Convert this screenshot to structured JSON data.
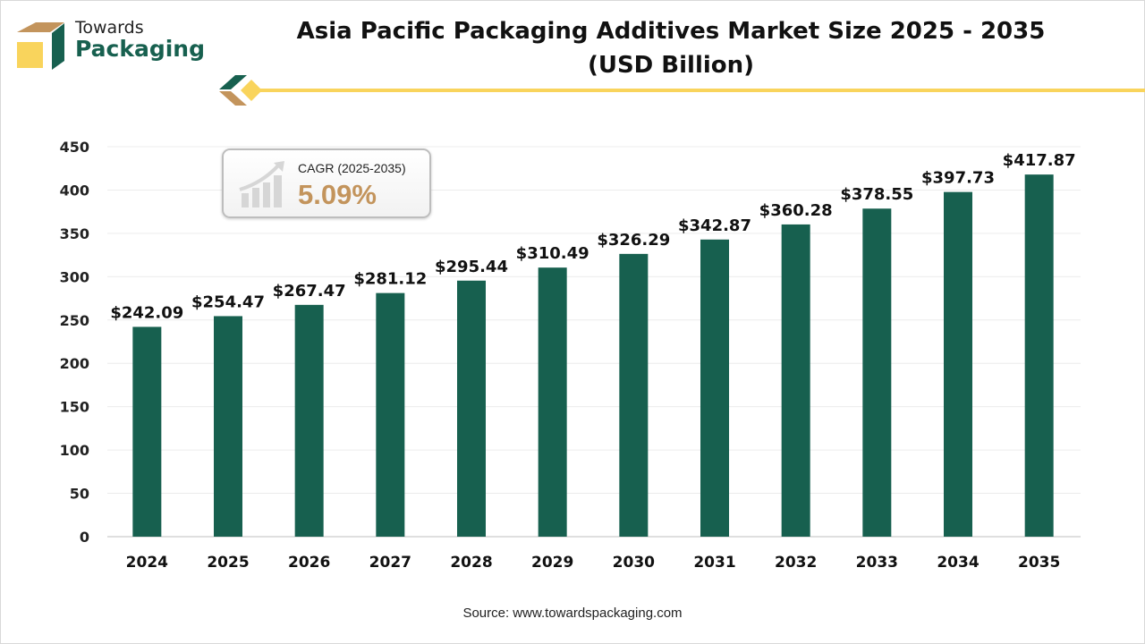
{
  "logo": {
    "line1": "Towards",
    "line2": "Packaging"
  },
  "title_line1": "Asia Pacific Packaging Additives Market Size 2025 - 2035",
  "title_line2": "(USD Billion)",
  "cagr": {
    "label": "CAGR (2025-2035)",
    "value": "5.09%"
  },
  "source": "Source: www.towardspackaging.com",
  "colors": {
    "bar": "#17604f",
    "accent_gold": "#f9d45c",
    "accent_tan": "#c3945c"
  },
  "chart_data": {
    "type": "bar",
    "title": "Asia Pacific Packaging Additives Market Size 2025 - 2035 (USD Billion)",
    "xlabel": "",
    "ylabel": "",
    "categories": [
      "2024",
      "2025",
      "2026",
      "2027",
      "2028",
      "2029",
      "2030",
      "2031",
      "2032",
      "2033",
      "2034",
      "2035"
    ],
    "values": [
      242.09,
      254.47,
      267.47,
      281.12,
      295.44,
      310.49,
      326.29,
      342.87,
      360.28,
      378.55,
      397.73,
      417.87
    ],
    "data_labels": [
      "$242.09",
      "$254.47",
      "$267.47",
      "$281.12",
      "$295.44",
      "$310.49",
      "$326.29",
      "$342.87",
      "$360.28",
      "$378.55",
      "$397.73",
      "$417.87"
    ],
    "ylim": [
      0,
      450
    ],
    "yticks": [
      0,
      50,
      100,
      150,
      200,
      250,
      300,
      350,
      400,
      450
    ],
    "grid": true,
    "legend": "none"
  }
}
